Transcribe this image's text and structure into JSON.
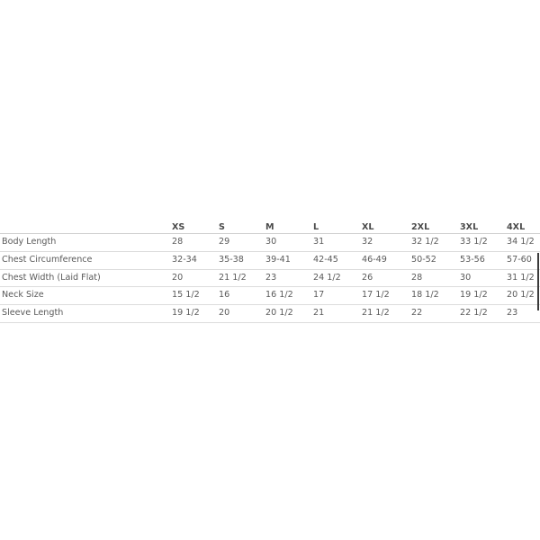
{
  "size_chart": {
    "headers": [
      "",
      "XS",
      "S",
      "M",
      "L",
      "XL",
      "2XL",
      "3XL",
      "4XL"
    ],
    "rows": [
      {
        "label": "Body Length",
        "values": [
          "28",
          "29",
          "30",
          "31",
          "32",
          "32 1/2",
          "33 1/2",
          "34 1/2"
        ]
      },
      {
        "label": "Chest Circumference",
        "values": [
          "32-34",
          "35-38",
          "39-41",
          "42-45",
          "46-49",
          "50-52",
          "53-56",
          "57-60"
        ]
      },
      {
        "label": "Chest Width (Laid Flat)",
        "values": [
          "20",
          "21 1/2",
          "23",
          "24 1/2",
          "26",
          "28",
          "30",
          "31 1/2"
        ]
      },
      {
        "label": "Neck Size",
        "values": [
          "15 1/2",
          "16",
          "16 1/2",
          "17",
          "17 1/2",
          "18 1/2",
          "19 1/2",
          "20 1/2"
        ]
      },
      {
        "label": "Sleeve Length",
        "values": [
          "19 1/2",
          "20",
          "20 1/2",
          "21",
          "21 1/2",
          "22",
          "22 1/2",
          "23"
        ]
      }
    ]
  }
}
